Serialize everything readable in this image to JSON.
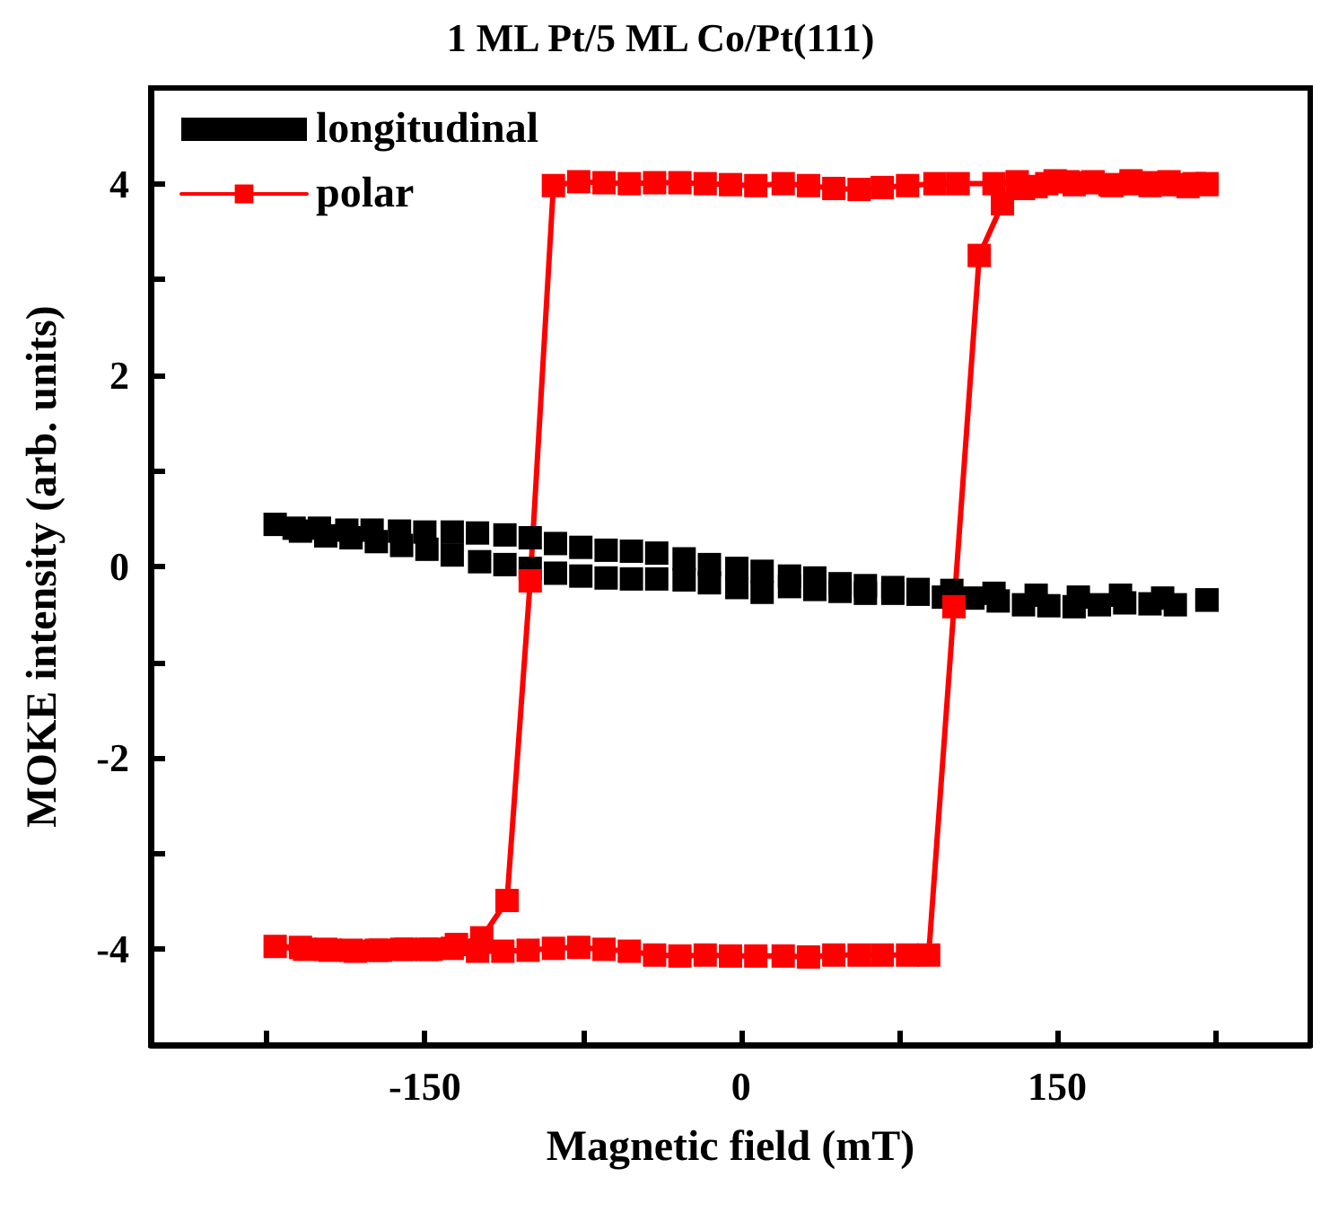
{
  "chart_data": {
    "type": "line",
    "title": "1 ML Pt/5 ML Co/Pt(111)",
    "xlabel": "Magnetic field (mT)",
    "ylabel": "MOKE intensity (arb. units)",
    "xlim": [
      -280,
      270
    ],
    "xticks": [
      {
        "value": -225,
        "label": null
      },
      -150,
      {
        "value": -75,
        "label": null
      },
      0,
      {
        "value": 75,
        "label": null
      },
      150,
      {
        "value": 225,
        "label": null
      }
    ],
    "ylim": [
      -5,
      5
    ],
    "yticks": [
      -4,
      {
        "value": -3,
        "label": null
      },
      -2,
      {
        "value": -1,
        "label": null
      },
      0,
      {
        "value": 1,
        "label": null
      },
      2,
      {
        "value": 3,
        "label": null
      },
      4
    ],
    "grid": false,
    "legend": "top left",
    "marker": "square",
    "line_style": "solid",
    "series": [
      {
        "name": "longitudinal",
        "type": "scatter",
        "color": "#000000",
        "x": [
          221,
          200,
          180,
          160,
          140,
          120,
          100,
          84,
          72,
          59,
          47,
          35,
          23,
          10,
          -2,
          -15,
          -27,
          -40,
          -52,
          -64,
          -76,
          -88,
          -100,
          -112,
          -125,
          -137,
          -150,
          -162,
          -175,
          -187,
          -200,
          -212,
          -221,
          -209,
          -197,
          -185,
          -173,
          -161,
          -149,
          -137,
          -124,
          -112,
          -100,
          -88,
          -76,
          -64,
          -52,
          -40,
          -27,
          -15,
          -2,
          10,
          23,
          35,
          47,
          59,
          72,
          84,
          96,
          110,
          122,
          134,
          146,
          158,
          170,
          182,
          194,
          206,
          221
        ],
        "values": [
          -0.35,
          -0.33,
          -0.3,
          -0.32,
          -0.3,
          -0.28,
          -0.25,
          -0.24,
          -0.22,
          -0.2,
          -0.18,
          -0.12,
          -0.1,
          -0.05,
          -0.02,
          0.02,
          0.08,
          0.14,
          0.16,
          0.17,
          0.2,
          0.24,
          0.3,
          0.33,
          0.35,
          0.36,
          0.36,
          0.37,
          0.38,
          0.38,
          0.4,
          0.4,
          0.44,
          0.37,
          0.32,
          0.3,
          0.26,
          0.22,
          0.18,
          0.12,
          0.05,
          0.02,
          -0.02,
          -0.07,
          -0.1,
          -0.12,
          -0.13,
          -0.13,
          -0.14,
          -0.17,
          -0.22,
          -0.27,
          -0.21,
          -0.24,
          -0.26,
          -0.28,
          -0.28,
          -0.29,
          -0.32,
          -0.33,
          -0.36,
          -0.4,
          -0.41,
          -0.42,
          -0.4,
          -0.38,
          -0.39,
          -0.4,
          -0.35
        ]
      },
      {
        "name": "polar",
        "color": "#ff0000",
        "x": [
          221,
          212,
          203,
          194,
          185,
          176,
          167,
          158,
          149,
          140,
          131,
          120,
          103,
          92,
          79,
          67,
          56,
          44,
          32,
          20,
          7,
          -5,
          -17,
          -29,
          -41,
          -53,
          -65,
          -77,
          -89,
          -100,
          -111,
          -123,
          -135,
          -147,
          -159,
          -171,
          -183,
          -195,
          -207,
          -221,
          -209,
          -197,
          -185,
          -173,
          -161,
          -149,
          -137,
          -125,
          -113,
          -101,
          -89,
          -77,
          -65,
          -53,
          -41,
          -29,
          -17,
          -5,
          7,
          20,
          32,
          44,
          56,
          67,
          79,
          89,
          101,
          113,
          124,
          134,
          145,
          155,
          165,
          175,
          185,
          195,
          205,
          215,
          221
        ],
        "values": [
          4.0,
          3.97,
          4.02,
          3.98,
          4.03,
          3.98,
          4.02,
          3.99,
          4.03,
          3.97,
          4.02,
          4.0,
          4.0,
          4.0,
          3.98,
          3.96,
          3.94,
          3.95,
          3.98,
          4.0,
          3.98,
          3.99,
          4.0,
          4.01,
          4.01,
          4.0,
          4.01,
          4.02,
          3.98,
          -0.15,
          -3.49,
          -3.88,
          -3.95,
          -4.0,
          -4.0,
          -4.01,
          -4.02,
          -4.01,
          -4.0,
          -3.97,
          -3.98,
          -4.0,
          -4.01,
          -4.01,
          -4.0,
          -4.0,
          -3.99,
          -4.02,
          -4.02,
          -4.01,
          -3.99,
          -3.98,
          -4.0,
          -4.02,
          -4.06,
          -4.07,
          -4.06,
          -4.07,
          -4.07,
          -4.07,
          -4.08,
          -4.06,
          -4.06,
          -4.06,
          -4.06,
          -4.06,
          -0.42,
          3.25,
          3.79,
          3.95,
          4.0,
          4.02,
          4.01,
          3.99,
          4.0,
          4.01,
          3.99,
          4.0,
          3.99
        ]
      }
    ]
  }
}
